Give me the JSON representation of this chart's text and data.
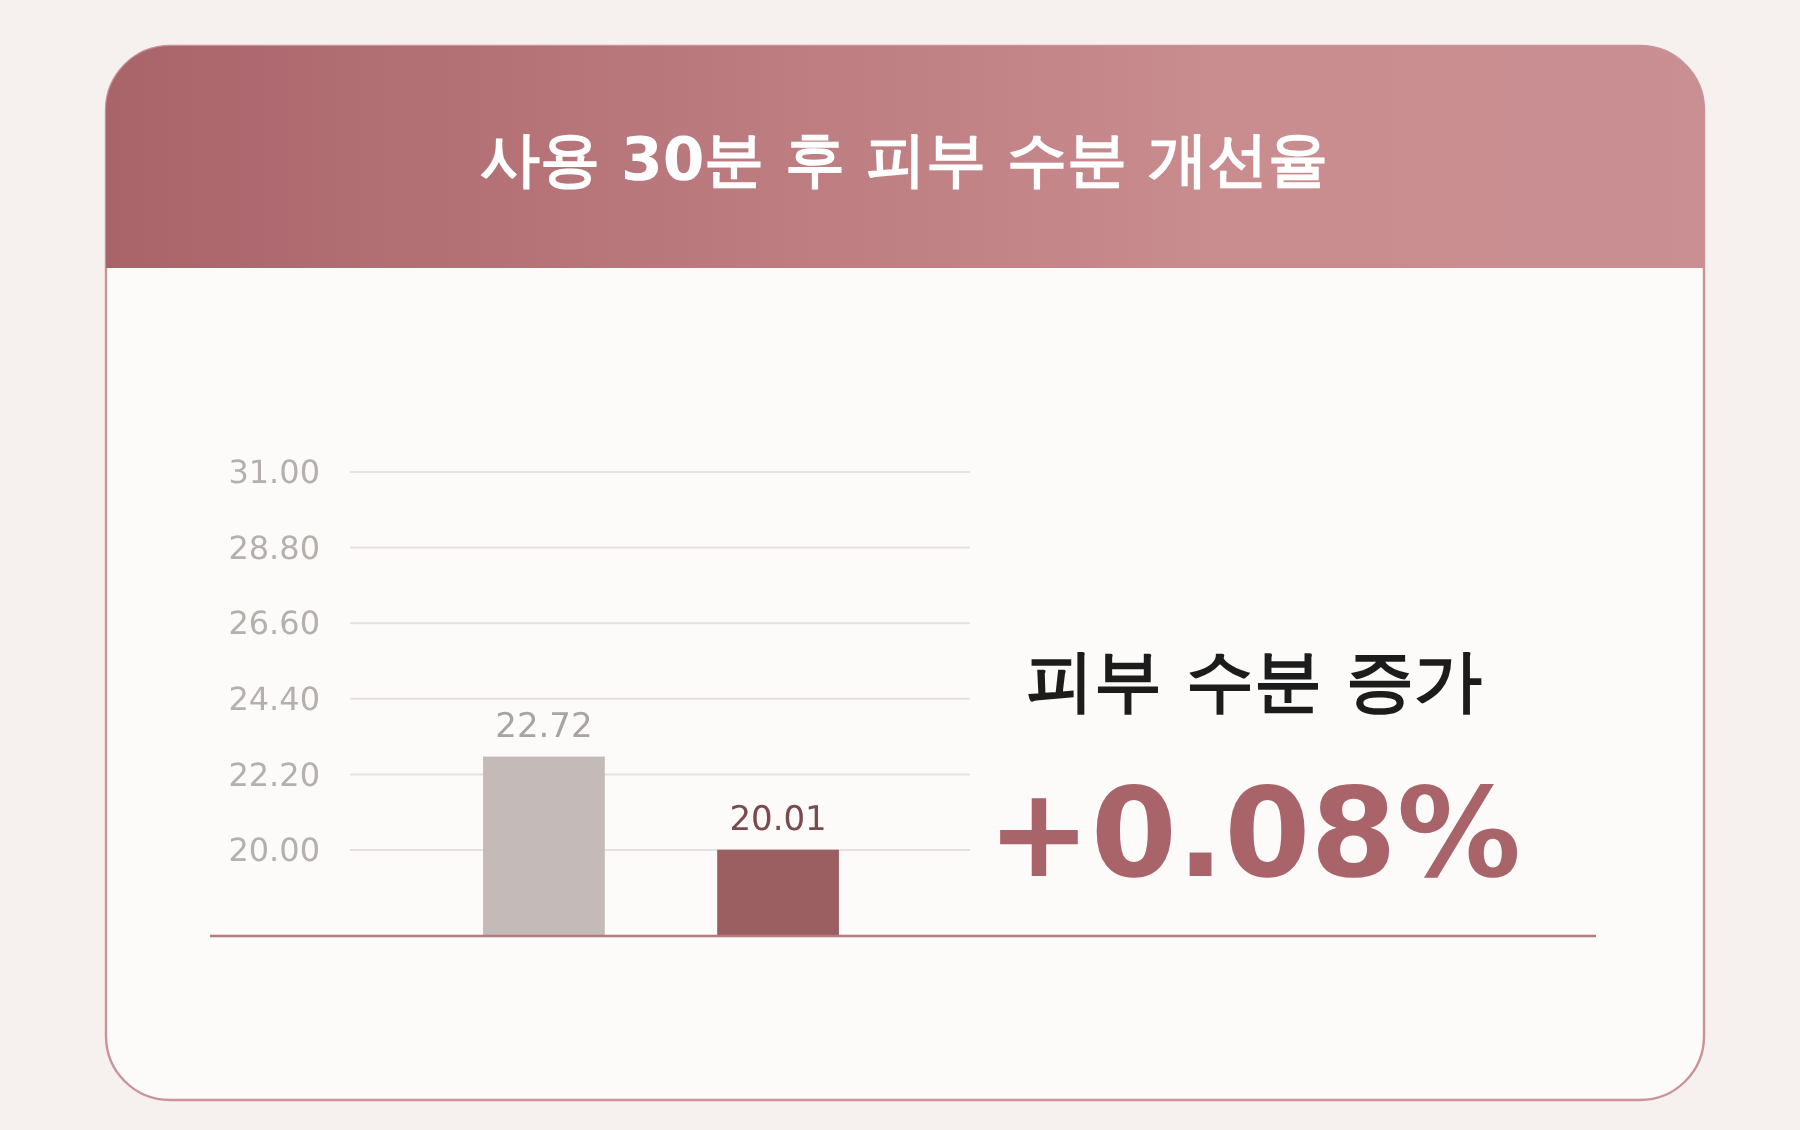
{
  "chart_data": {
    "type": "bar",
    "title": "사용 30분 후 피부 수분 개선율",
    "categories": [
      null,
      null
    ],
    "values": [
      22.72,
      20.01
    ],
    "colors": [
      "#c4bab8",
      "#9b5f62"
    ],
    "ylim": [
      17.5,
      31.0
    ],
    "yticks": [
      {
        "value": 20,
        "label": "20.00"
      },
      {
        "value": 22.2,
        "label": "22.20"
      },
      {
        "value": 24.4,
        "label": "24.40"
      },
      {
        "value": 26.6,
        "label": "26.60"
      },
      {
        "value": 28.8,
        "label": "28.80"
      },
      {
        "value": 31,
        "label": "31.00"
      }
    ],
    "grid": "y",
    "data_labels": true,
    "annotations": [
      "피부 수분 증가",
      "+0.08%"
    ]
  }
}
